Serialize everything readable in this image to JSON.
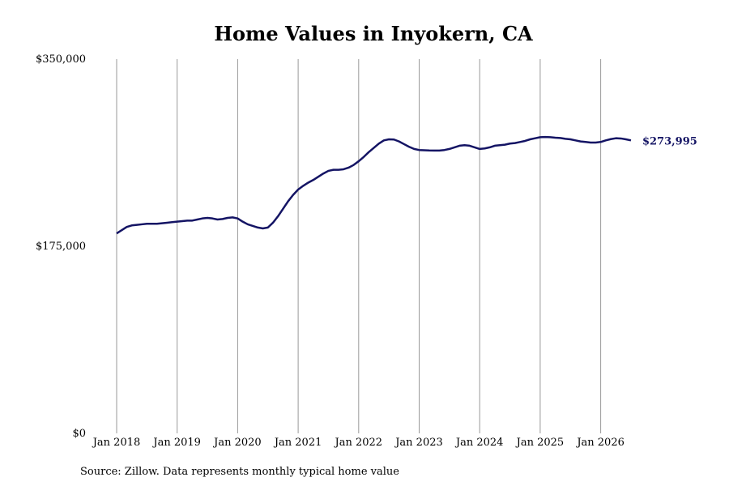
{
  "chart_data": {
    "type": "line",
    "title": "Home Values in Inyokern, CA",
    "source": "Source: Zillow. Data represents monthly typical home value",
    "x": [
      "2018-01",
      "2018-02",
      "2018-03",
      "2018-04",
      "2018-05",
      "2018-06",
      "2018-07",
      "2018-08",
      "2018-09",
      "2018-10",
      "2018-11",
      "2018-12",
      "2019-01",
      "2019-02",
      "2019-03",
      "2019-04",
      "2019-05",
      "2019-06",
      "2019-07",
      "2019-08",
      "2019-09",
      "2019-10",
      "2019-11",
      "2019-12",
      "2020-01",
      "2020-02",
      "2020-03",
      "2020-04",
      "2020-05",
      "2020-06",
      "2020-07",
      "2020-08",
      "2020-09",
      "2020-10",
      "2020-11",
      "2020-12",
      "2021-01",
      "2021-02",
      "2021-03",
      "2021-04",
      "2021-05",
      "2021-06",
      "2021-07",
      "2021-08",
      "2021-09",
      "2021-10",
      "2021-11",
      "2021-12",
      "2022-01",
      "2022-02",
      "2022-03",
      "2022-04",
      "2022-05",
      "2022-06",
      "2022-07",
      "2022-08",
      "2022-09",
      "2022-10",
      "2022-11",
      "2022-12",
      "2023-01",
      "2023-02",
      "2023-03",
      "2023-04",
      "2023-05",
      "2023-06",
      "2023-07",
      "2023-08",
      "2023-09",
      "2023-10",
      "2023-11",
      "2023-12",
      "2024-01",
      "2024-02",
      "2024-03",
      "2024-04",
      "2024-05",
      "2024-06",
      "2024-07",
      "2024-08",
      "2024-09",
      "2024-10",
      "2024-11",
      "2024-12",
      "2025-01",
      "2025-02",
      "2025-03",
      "2025-04",
      "2025-05",
      "2025-06",
      "2025-07",
      "2025-08",
      "2025-09",
      "2025-10",
      "2025-11",
      "2025-12",
      "2026-01",
      "2026-02",
      "2026-03",
      "2026-04",
      "2026-05",
      "2026-06",
      "2026-07"
    ],
    "series": [
      {
        "name": "Home value",
        "color": "#141464",
        "values": [
          187000,
          190000,
          193000,
          194500,
          195000,
          195500,
          196000,
          196000,
          196000,
          196500,
          197000,
          197500,
          198000,
          198500,
          199000,
          199000,
          200000,
          201000,
          201500,
          201000,
          200000,
          200500,
          201500,
          202000,
          201000,
          198000,
          195500,
          194000,
          192500,
          191700,
          192500,
          197000,
          203000,
          210000,
          217000,
          223000,
          228000,
          231500,
          234500,
          237000,
          240000,
          243000,
          245500,
          246500,
          246500,
          247000,
          248500,
          251000,
          254500,
          258500,
          263000,
          267000,
          271000,
          274000,
          275000,
          274800,
          273000,
          270500,
          268000,
          266000,
          265000,
          264800,
          264600,
          264500,
          264500,
          265000,
          266000,
          267500,
          269000,
          269500,
          269000,
          267500,
          266000,
          266500,
          267500,
          269000,
          269500,
          270000,
          271000,
          271500,
          272500,
          273500,
          275000,
          276000,
          277000,
          277200,
          277000,
          276500,
          276200,
          275500,
          275000,
          274000,
          273000,
          272500,
          272000,
          272000,
          272500,
          274000,
          275200,
          276000,
          275800,
          275000,
          273995
        ],
        "value_labels": [
          null,
          null,
          null,
          null,
          null,
          null,
          null,
          null,
          null,
          null,
          null,
          null,
          null,
          null,
          null,
          null,
          null,
          null,
          null,
          null,
          null,
          null,
          null,
          null,
          null,
          null,
          null,
          null,
          null,
          null,
          null,
          null,
          null,
          null,
          null,
          null,
          null,
          null,
          null,
          null,
          null,
          null,
          null,
          null,
          null,
          null,
          null,
          null,
          null,
          null,
          null,
          null,
          null,
          null,
          null,
          null,
          null,
          null,
          null,
          null,
          null,
          null,
          null,
          null,
          null,
          null,
          null,
          null,
          null,
          null,
          null,
          null,
          null,
          null,
          null,
          null,
          null,
          null,
          null,
          null,
          null,
          null,
          null,
          null,
          null,
          null,
          null,
          null,
          null,
          null,
          null,
          null,
          null,
          null,
          null,
          null,
          null,
          null,
          null,
          null,
          null,
          null,
          "$273,995"
        ]
      }
    ],
    "ylim": [
      0,
      350000
    ],
    "yticks": [
      {
        "value": 0,
        "label": "$0"
      },
      {
        "value": 175000,
        "label": "$175,000"
      },
      {
        "value": 350000,
        "label": "$350,000"
      }
    ],
    "xticks": [
      {
        "value": "2018-01",
        "label": "Jan 2018"
      },
      {
        "value": "2019-01",
        "label": "Jan 2019"
      },
      {
        "value": "2020-01",
        "label": "Jan 2020"
      },
      {
        "value": "2021-01",
        "label": "Jan 2021"
      },
      {
        "value": "2022-01",
        "label": "Jan 2022"
      },
      {
        "value": "2023-01",
        "label": "Jan 2023"
      },
      {
        "value": "2024-01",
        "label": "Jan 2024"
      },
      {
        "value": "2025-01",
        "label": "Jan 2025"
      },
      {
        "value": "2026-01",
        "label": "Jan 2026"
      }
    ],
    "grid": "x"
  }
}
